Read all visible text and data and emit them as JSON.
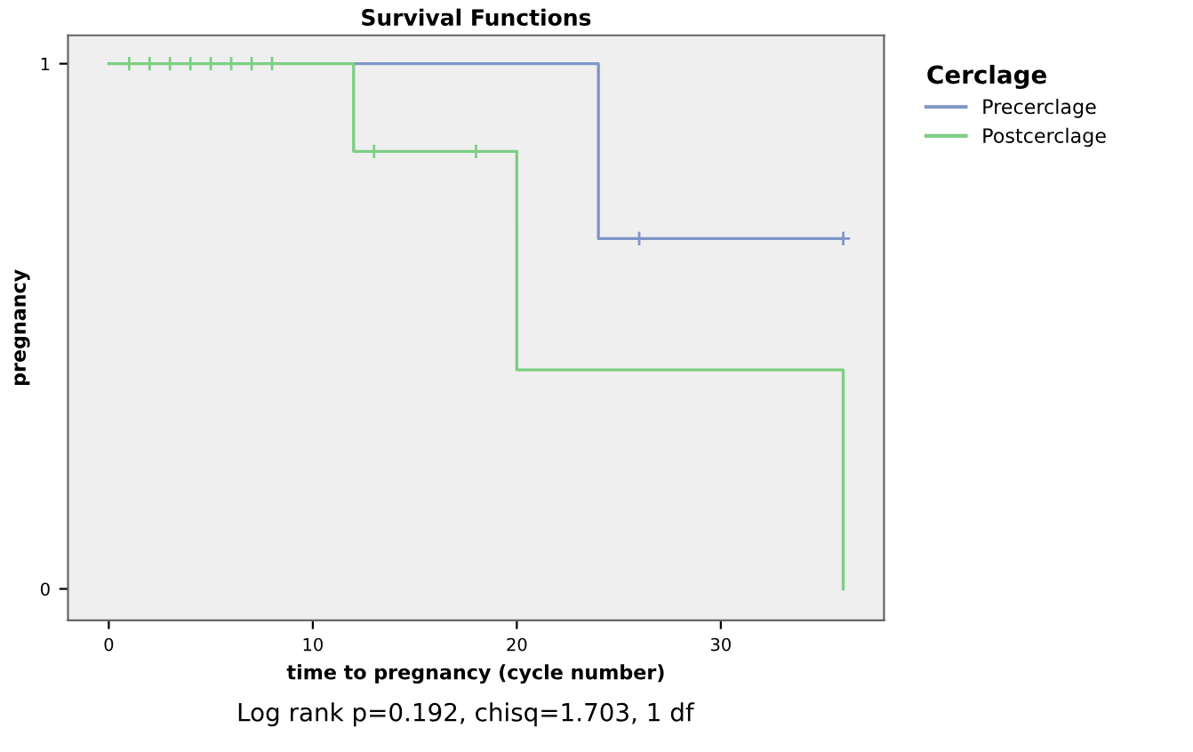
{
  "chart_data": {
    "type": "step",
    "title": "Survival Functions",
    "xlabel": "time to pregnancy (cycle number)",
    "ylabel": "pregnancy",
    "legend_title": "Cerclage",
    "series": [
      {
        "name": "Precerclage",
        "color": "#7f96c8",
        "x": [
          12,
          24,
          36
        ],
        "values": [
          1,
          0.667,
          0.667
        ]
      },
      {
        "name": "Postcerclage",
        "color": "#7ccf84",
        "x": [
          0,
          12,
          20,
          36
        ],
        "values": [
          1,
          0.833,
          0.417,
          0
        ]
      },
      {
        "type": "scatter",
        "color": "#7f96c8",
        "marker": "cross",
        "x": [
          26,
          36
        ],
        "values": [
          0.667,
          0.667
        ]
      },
      {
        "type": "scatter",
        "color": "#7ccf84",
        "marker": "cross",
        "x": [
          1,
          2,
          3,
          4,
          5,
          6,
          7,
          8,
          13,
          18
        ],
        "values": [
          1,
          1,
          1,
          1,
          1,
          1,
          1,
          1,
          0.833,
          0.833
        ]
      }
    ],
    "xlim": [
      -2,
      38
    ],
    "ylim": [
      -0.06,
      1.054
    ],
    "xticks": [
      0,
      10,
      20,
      30
    ],
    "yticks": [
      0,
      1
    ],
    "grid": false,
    "legend": "top right",
    "annotations": [
      "Log rank p=0.192, chisq=1.703, 1 df"
    ]
  }
}
